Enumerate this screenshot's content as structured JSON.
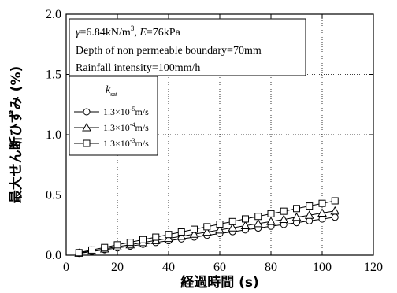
{
  "chart_data": {
    "type": "line",
    "xlabel": "経過時間 (s)",
    "ylabel": "最大せん断ひずみ (%)",
    "xlim": [
      0,
      120
    ],
    "ylim": [
      0,
      2.0
    ],
    "xticks": [
      0,
      20,
      40,
      60,
      80,
      100,
      120
    ],
    "yticks": [
      0.0,
      0.5,
      1.0,
      1.5,
      2.0
    ],
    "xtick_labels": [
      "0",
      "20",
      "40",
      "60",
      "80",
      "100",
      "120"
    ],
    "ytick_labels": [
      "0.0",
      "0.5",
      "1.0",
      "1.5",
      "2.0"
    ],
    "grid": "dotted, major ticks",
    "annotation": {
      "line1_gamma_sym": "γ",
      "line1_gamma_val": "=6.84kN/m",
      "line1_gamma_exp": "3",
      "line1_sep": ", ",
      "line1_E_sym": "E",
      "line1_E_val": "=76kPa",
      "line2": "Depth of non permeable boundary=70mm",
      "line3": "Rainfall intensity=100mm/h"
    },
    "legend": {
      "title_main": "k",
      "title_sub": "sat",
      "placement": "upper-left, inside annotation box",
      "entries": [
        {
          "marker": "circle",
          "base": "1.3×10",
          "exp": "-5",
          "unit": "m/s"
        },
        {
          "marker": "triangle",
          "base": "1.3×10",
          "exp": "-4",
          "unit": "m/s"
        },
        {
          "marker": "square",
          "base": "1.3×10",
          "exp": "-3",
          "unit": "m/s"
        }
      ]
    },
    "series": [
      {
        "marker": "circle",
        "x": [
          5,
          10,
          15,
          20,
          25,
          30,
          35,
          40,
          45,
          50,
          55,
          60,
          65,
          70,
          75,
          80,
          85,
          90,
          95,
          100,
          105
        ],
        "y": [
          0.015,
          0.03,
          0.045,
          0.06,
          0.075,
          0.09,
          0.105,
          0.12,
          0.135,
          0.15,
          0.165,
          0.18,
          0.195,
          0.21,
          0.225,
          0.24,
          0.255,
          0.27,
          0.285,
          0.3,
          0.315
        ]
      },
      {
        "marker": "triangle",
        "x": [
          5,
          10,
          15,
          20,
          25,
          30,
          35,
          40,
          45,
          50,
          55,
          60,
          65,
          70,
          75,
          80,
          85,
          90,
          95,
          100,
          105
        ],
        "y": [
          0.017,
          0.035,
          0.052,
          0.07,
          0.087,
          0.105,
          0.122,
          0.14,
          0.157,
          0.175,
          0.192,
          0.21,
          0.227,
          0.245,
          0.262,
          0.28,
          0.297,
          0.315,
          0.332,
          0.35,
          0.367
        ]
      },
      {
        "marker": "square",
        "x": [
          5,
          10,
          15,
          20,
          25,
          30,
          35,
          40,
          45,
          50,
          55,
          60,
          65,
          70,
          75,
          80,
          85,
          90,
          95,
          100,
          105
        ],
        "y": [
          0.021,
          0.043,
          0.064,
          0.086,
          0.107,
          0.129,
          0.15,
          0.172,
          0.193,
          0.215,
          0.236,
          0.258,
          0.279,
          0.301,
          0.322,
          0.344,
          0.365,
          0.387,
          0.408,
          0.43,
          0.451
        ]
      }
    ]
  }
}
